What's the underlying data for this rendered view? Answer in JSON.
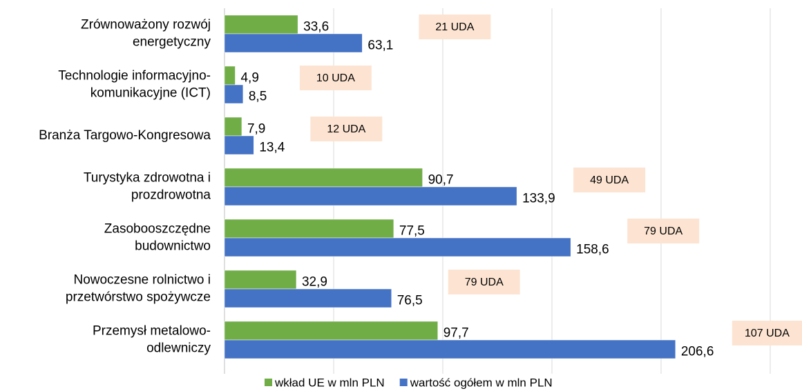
{
  "chart_data": {
    "type": "bar",
    "orientation": "horizontal",
    "categories": [
      [
        "Zrównoważony rozwój",
        "energetyczny"
      ],
      [
        "Technologie informacyjno-",
        "komunikacyjne (ICT)"
      ],
      [
        "Branża Targowo-Kongresowa"
      ],
      [
        "Turystyka zdrowotna i",
        "prozdrowotna"
      ],
      [
        "Zasobooszczędne",
        "budownictwo"
      ],
      [
        "Nowoczesne rolnictwo i",
        "przetwórstwo spożywcze"
      ],
      [
        "Przemysł metalowo-",
        "odlewniczy"
      ]
    ],
    "series": [
      {
        "name": "wkład UE w mln PLN",
        "color": "#70ad47",
        "values": [
          33.6,
          4.9,
          7.9,
          90.7,
          77.5,
          32.9,
          97.7
        ],
        "value_labels": [
          "33,6",
          "4,9",
          "7,9",
          "90,7",
          "77,5",
          "32,9",
          "97,7"
        ]
      },
      {
        "name": "wartość ogółem w mln PLN",
        "color": "#4472c4",
        "values": [
          63.1,
          8.5,
          13.4,
          133.9,
          158.6,
          76.5,
          206.6
        ],
        "value_labels": [
          "63,1",
          "8,5",
          "13,4",
          "133,9",
          "158,6",
          "76,5",
          "206,6"
        ]
      }
    ],
    "annotations": [
      "21 UDA",
      "10 UDA",
      "12 UDA",
      "49 UDA",
      "79 UDA",
      "79 UDA",
      "107 UDA"
    ],
    "xlim": [
      0,
      250
    ],
    "xticks": [
      0,
      50,
      100,
      150,
      200,
      250
    ],
    "grid": true,
    "legend": "bottom"
  }
}
